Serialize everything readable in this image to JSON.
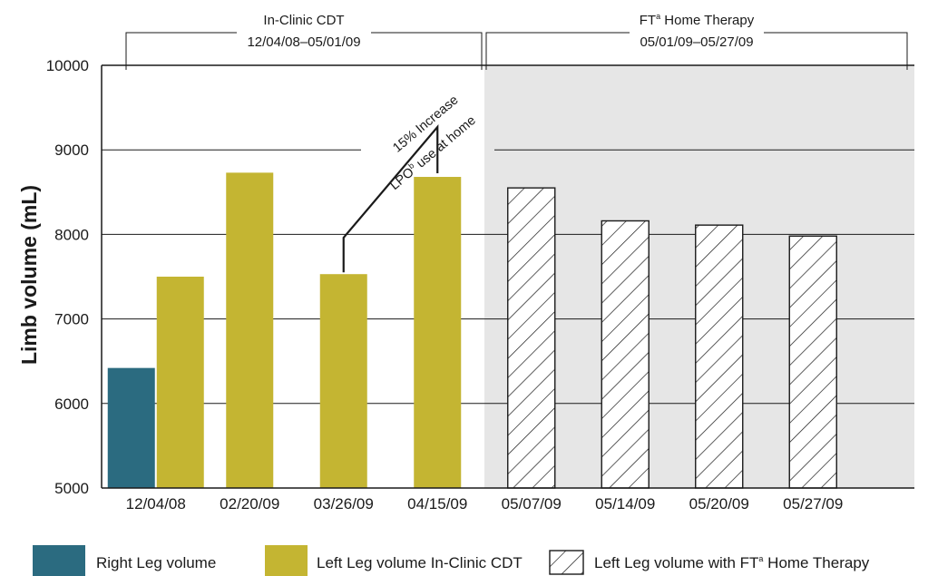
{
  "chart_data": {
    "type": "bar",
    "ylabel": "Limb volume (mL)",
    "ylim": [
      5000,
      10000
    ],
    "yticks": [
      5000,
      6000,
      7000,
      8000,
      9000,
      10000
    ],
    "grid": "horizontal",
    "categories": [
      "12/04/08",
      "02/20/09",
      "03/26/09",
      "04/15/09",
      "05/07/09",
      "05/14/09",
      "05/20/09",
      "05/27/09"
    ],
    "series": [
      {
        "name": "Right Leg volume",
        "color": "#2b6b80",
        "pattern": "solid",
        "values": [
          6420,
          null,
          null,
          null,
          null,
          null,
          null,
          null
        ]
      },
      {
        "name": "Left Leg volume In-Clinic CDT",
        "color": "#c4b532",
        "pattern": "solid",
        "values": [
          7500,
          8730,
          7530,
          8680,
          null,
          null,
          null,
          null
        ]
      },
      {
        "name": "Left Leg volume with FT",
        "name_sup": "a",
        "name_suffix": " Home Therapy",
        "color": "#ffffff",
        "pattern": "hatch",
        "values": [
          null,
          null,
          null,
          null,
          8550,
          8160,
          8110,
          7980
        ]
      }
    ],
    "periods": [
      {
        "title": "In-Clinic CDT",
        "range": "12/04/08–05/01/09",
        "start_index": 0,
        "end_index": 3,
        "shaded": false
      },
      {
        "title": "FT",
        "title_sup": "a",
        "title_suffix": " Home Therapy",
        "range": "05/01/09–05/27/09",
        "start_index": 4,
        "end_index": 7,
        "shaded": true
      }
    ],
    "annotation": {
      "line1": "15% Increase",
      "line2_prefix": "LPO",
      "line2_sup": "b",
      "line2_suffix": " use at home",
      "from_index": 2,
      "to_index": 3
    },
    "legend_position": "bottom"
  }
}
